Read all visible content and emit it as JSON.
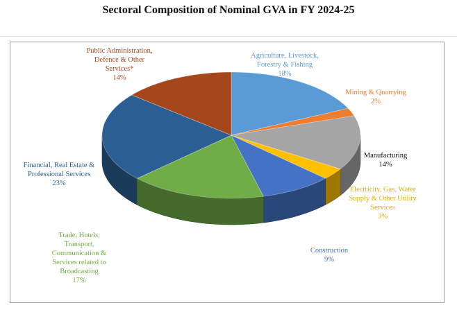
{
  "title": "Sectoral Composition of Nominal GVA in FY 2024-25",
  "chart_data": {
    "type": "pie",
    "title": "Sectoral Composition of Nominal GVA in FY 2024-25",
    "unit": "%",
    "slices": [
      {
        "label": [
          "Agriculture, Livestock,",
          "Forestry & Fishing"
        ],
        "value": 18,
        "value_text": "18%",
        "color": "#5b9bd5",
        "label_color": "#5b9bd5"
      },
      {
        "label": [
          "Mining & Quarrying"
        ],
        "value": 2,
        "value_text": "2%",
        "color": "#ed7d31",
        "label_color": "#ed7d31"
      },
      {
        "label": [
          "Manufacturing"
        ],
        "value": 14,
        "value_text": "14%",
        "color": "#a5a5a5",
        "label_color": "#111111"
      },
      {
        "label": [
          "Electricity, Gas, Water",
          "Supply & Other Utility",
          "Services"
        ],
        "value": 3,
        "value_text": "3%",
        "color": "#ffc000",
        "label_color": "#e6ad00"
      },
      {
        "label": [
          "Construction"
        ],
        "value": 9,
        "value_text": "9%",
        "color": "#4472c4",
        "label_color": "#4472c4"
      },
      {
        "label": [
          "Trade, Hotels,",
          "Transport,",
          "Communication &",
          "Services related to",
          "Broadcasting"
        ],
        "value": 17,
        "value_text": "17%",
        "color": "#70ad47",
        "label_color": "#70ad47"
      },
      {
        "label": [
          "Financial, Real Estate &",
          "Professional Services"
        ],
        "value": 23,
        "value_text": "23%",
        "color": "#2b5f93",
        "label_color": "#2b5f93"
      },
      {
        "label": [
          "Public Administration,",
          "Defence & Other",
          "Services*"
        ],
        "value": 14,
        "value_text": "14%",
        "color": "#a5471b",
        "label_color": "#a5471b"
      }
    ]
  }
}
